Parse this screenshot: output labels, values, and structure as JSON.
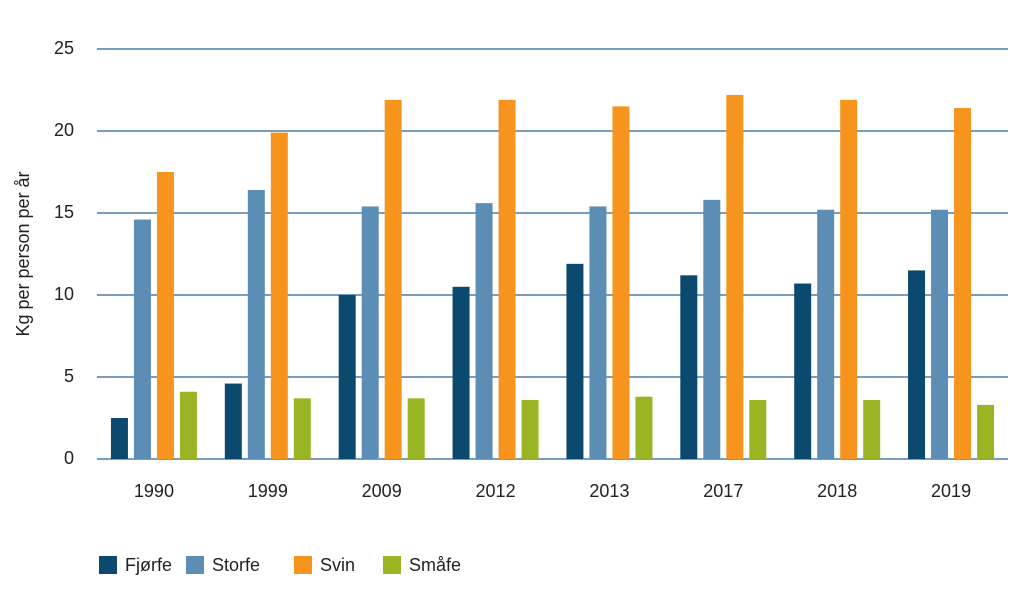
{
  "chart_data": {
    "type": "grouped-bar",
    "y_label": "Kg per person per år",
    "categories": [
      "1990",
      "1999",
      "2009",
      "2012",
      "2013",
      "2017",
      "2018",
      "2019"
    ],
    "series": [
      {
        "name": "Fjørfe",
        "color": "#0b4a6e",
        "values": [
          2.5,
          4.6,
          10.0,
          10.5,
          11.9,
          11.2,
          10.7,
          11.5
        ]
      },
      {
        "name": "Storfe",
        "color": "#5b8db5",
        "values": [
          14.6,
          16.4,
          15.4,
          15.6,
          15.4,
          15.8,
          15.2,
          15.2
        ]
      },
      {
        "name": "Svin",
        "color": "#f7941d",
        "values": [
          17.5,
          19.9,
          21.9,
          21.9,
          21.5,
          22.2,
          21.9,
          21.4
        ]
      },
      {
        "name": "Småfe",
        "color": "#9ab523",
        "values": [
          4.1,
          3.7,
          3.7,
          3.6,
          3.8,
          3.6,
          3.6,
          3.3
        ]
      }
    ],
    "ylim": [
      0,
      25
    ],
    "yticks": [
      0,
      5,
      10,
      15,
      20,
      25
    ],
    "grid": true,
    "legend": "bottom"
  }
}
